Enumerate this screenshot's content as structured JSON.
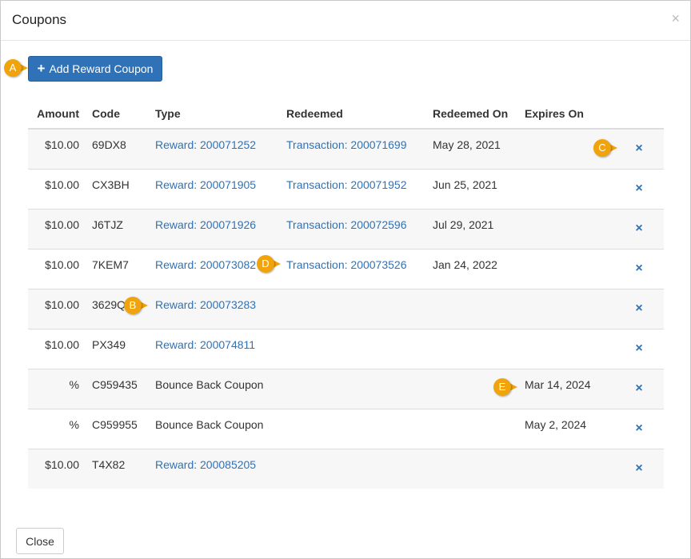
{
  "dialog": {
    "title": "Coupons",
    "close_icon": "×"
  },
  "toolbar": {
    "add_icon": "+",
    "add_label": "Add Reward Coupon"
  },
  "table": {
    "headers": [
      "Amount",
      "Code",
      "Type",
      "Redeemed",
      "Redeemed On",
      "Expires On"
    ],
    "rows": [
      {
        "amount": "$10.00",
        "code": "69DX8",
        "type": "Reward: 200071252",
        "redeemed": "Transaction: 200071699",
        "redeemed_on": "May 28, 2021",
        "expires_on": ""
      },
      {
        "amount": "$10.00",
        "code": "CX3BH",
        "type": "Reward: 200071905",
        "redeemed": "Transaction: 200071952",
        "redeemed_on": "Jun 25, 2021",
        "expires_on": ""
      },
      {
        "amount": "$10.00",
        "code": "J6TJZ",
        "type": "Reward: 200071926",
        "redeemed": "Transaction: 200072596",
        "redeemed_on": "Jul 29, 2021",
        "expires_on": ""
      },
      {
        "amount": "$10.00",
        "code": "7KEM7",
        "type": "Reward: 200073082",
        "redeemed": "Transaction: 200073526",
        "redeemed_on": "Jan 24, 2022",
        "expires_on": ""
      },
      {
        "amount": "$10.00",
        "code": "3629Q",
        "type": "Reward: 200073283",
        "redeemed": "",
        "redeemed_on": "",
        "expires_on": ""
      },
      {
        "amount": "$10.00",
        "code": "PX349",
        "type": "Reward: 200074811",
        "redeemed": "",
        "redeemed_on": "",
        "expires_on": ""
      },
      {
        "amount": "%",
        "code": "C959435",
        "type": "Bounce Back Coupon",
        "redeemed": "",
        "redeemed_on": "",
        "expires_on": "Mar 14, 2024"
      },
      {
        "amount": "%",
        "code": "C959955",
        "type": "Bounce Back Coupon",
        "redeemed": "",
        "redeemed_on": "",
        "expires_on": "May 2, 2024"
      },
      {
        "amount": "$10.00",
        "code": "T4X82",
        "type": "Reward: 200085205",
        "redeemed": "",
        "redeemed_on": "",
        "expires_on": ""
      }
    ],
    "delete_icon": "×"
  },
  "footer": {
    "close_label": "Close"
  },
  "callouts": [
    "A",
    "B",
    "C",
    "D",
    "E"
  ],
  "colors": {
    "primary": "#2f72b8",
    "callout": "#f0a30a"
  }
}
